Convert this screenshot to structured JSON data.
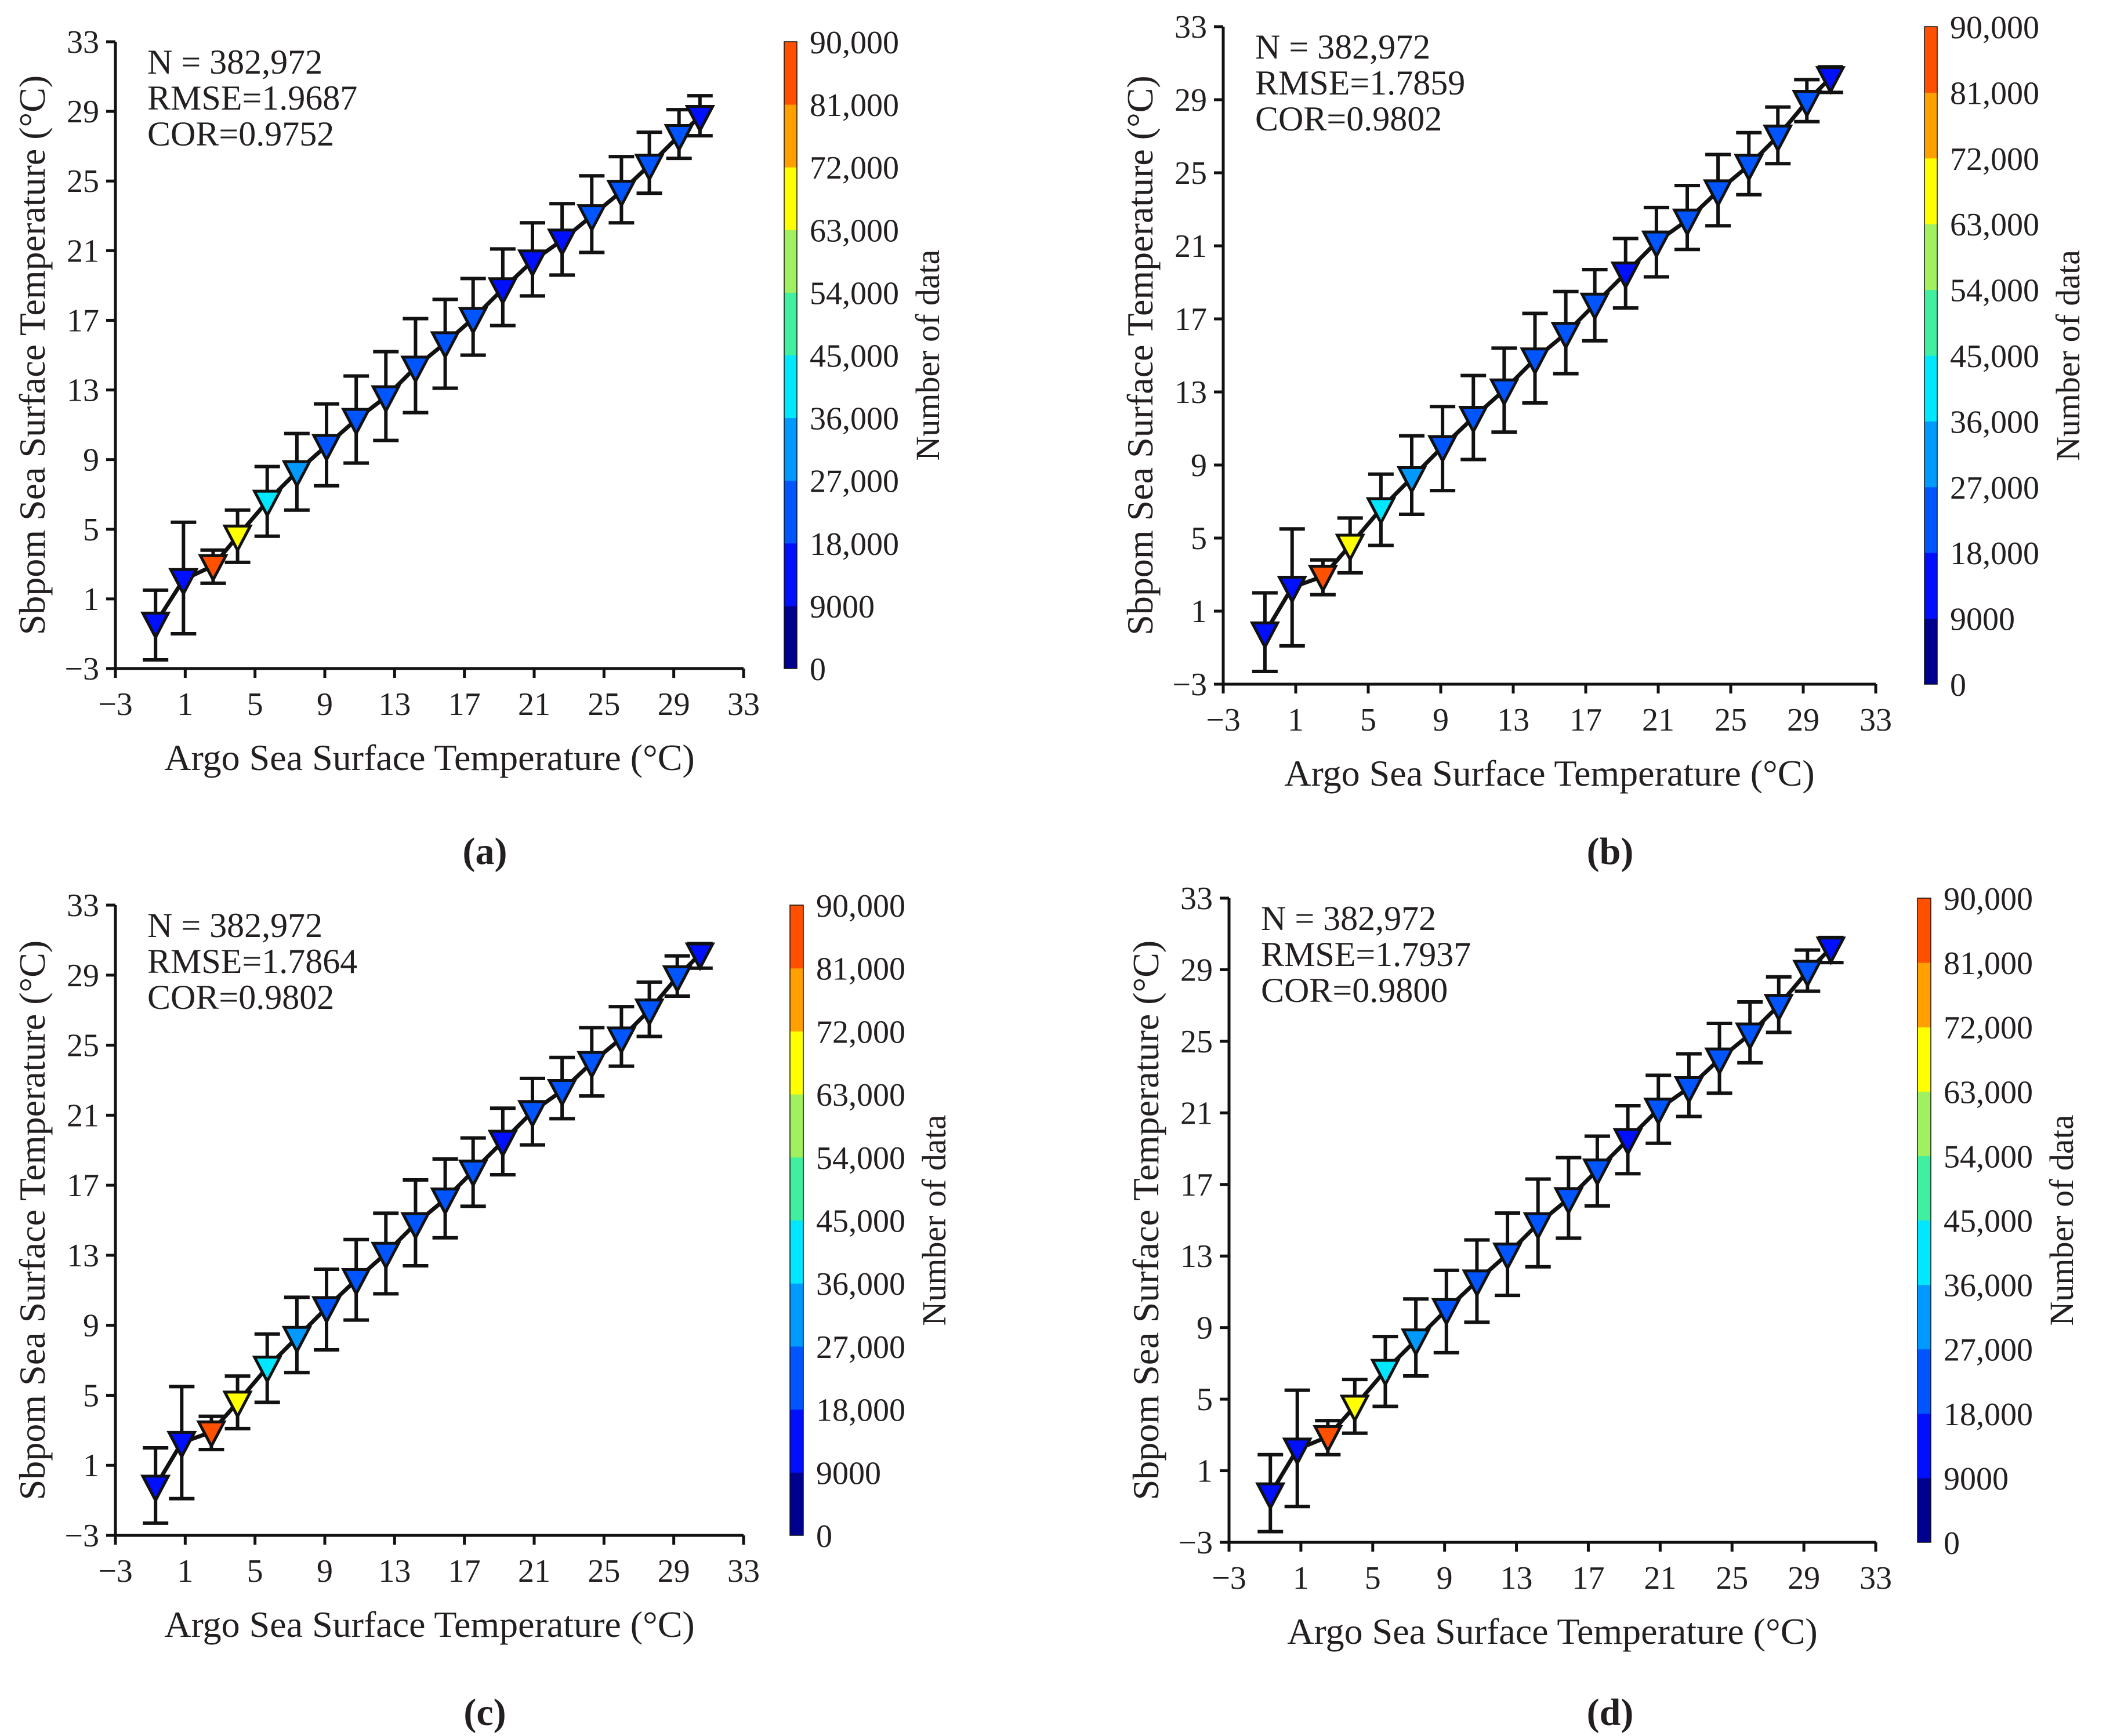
{
  "chart_data": [
    {
      "panel_label": "(a)",
      "panel_letter": "a",
      "type": "scatter",
      "xlabel": "Argo Sea Surface Temperature (°C)",
      "ylabel": "Sbpom Sea Surface Temperature (°C)",
      "xlim": [
        -3,
        33
      ],
      "ylim": [
        -3,
        33
      ],
      "xticks": [
        -3,
        1,
        5,
        9,
        13,
        17,
        21,
        25,
        29,
        33
      ],
      "yticks": [
        -3,
        1,
        5,
        9,
        13,
        17,
        21,
        25,
        29,
        33
      ],
      "annotations": [
        "N = 382,972",
        "RMSE=1.9687",
        "COR=0.9752"
      ],
      "colorbar": {
        "label": "Number of data",
        "ticks": [
          "0",
          "9000",
          "18,000",
          "27,000",
          "36,000",
          "45,000",
          "54,000",
          "63,000",
          "72,000",
          "81,000",
          "90,000"
        ],
        "range": [
          0,
          90000
        ]
      },
      "points": [
        {
          "x": -0.7,
          "y": -0.4,
          "err_hi": 1.5,
          "err_lo": -2.5,
          "count": 12000
        },
        {
          "x": 0.9,
          "y": 2.1,
          "err_hi": 5.4,
          "err_lo": -1.0,
          "count": 12000
        },
        {
          "x": 2.6,
          "y": 2.9,
          "err_hi": 3.8,
          "err_lo": 1.9,
          "count": 85000
        },
        {
          "x": 4.0,
          "y": 4.6,
          "err_hi": 6.1,
          "err_lo": 3.1,
          "count": 66000
        },
        {
          "x": 5.7,
          "y": 6.6,
          "err_hi": 8.6,
          "err_lo": 4.6,
          "count": 40000
        },
        {
          "x": 7.4,
          "y": 8.3,
          "err_hi": 10.5,
          "err_lo": 6.1,
          "count": 31000
        },
        {
          "x": 9.1,
          "y": 9.8,
          "err_hi": 12.2,
          "err_lo": 7.5,
          "count": 22000
        },
        {
          "x": 10.8,
          "y": 11.3,
          "err_hi": 13.8,
          "err_lo": 8.8,
          "count": 22000
        },
        {
          "x": 12.5,
          "y": 12.6,
          "err_hi": 15.2,
          "err_lo": 10.1,
          "count": 22000
        },
        {
          "x": 14.2,
          "y": 14.3,
          "err_hi": 17.1,
          "err_lo": 11.7,
          "count": 22000
        },
        {
          "x": 15.9,
          "y": 15.7,
          "err_hi": 18.2,
          "err_lo": 13.1,
          "count": 22000
        },
        {
          "x": 17.5,
          "y": 17.1,
          "err_hi": 19.4,
          "err_lo": 15.0,
          "count": 22000
        },
        {
          "x": 19.2,
          "y": 18.8,
          "err_hi": 21.1,
          "err_lo": 16.7,
          "count": 17000
        },
        {
          "x": 20.9,
          "y": 20.4,
          "err_hi": 22.6,
          "err_lo": 18.4,
          "count": 17000
        },
        {
          "x": 22.6,
          "y": 21.6,
          "err_hi": 23.7,
          "err_lo": 19.6,
          "count": 17000
        },
        {
          "x": 24.3,
          "y": 23.0,
          "err_hi": 25.3,
          "err_lo": 20.9,
          "count": 19000
        },
        {
          "x": 26.0,
          "y": 24.4,
          "err_hi": 26.4,
          "err_lo": 22.6,
          "count": 22000
        },
        {
          "x": 27.6,
          "y": 25.9,
          "err_hi": 27.8,
          "err_lo": 24.3,
          "count": 22000
        },
        {
          "x": 29.3,
          "y": 27.6,
          "err_hi": 29.1,
          "err_lo": 26.3,
          "count": 24000
        },
        {
          "x": 30.5,
          "y": 28.7,
          "err_hi": 29.9,
          "err_lo": 27.6,
          "count": 14000
        }
      ]
    },
    {
      "panel_label": "(b)",
      "panel_letter": "b",
      "type": "scatter",
      "xlabel": "Argo Sea Surface Temperature (°C)",
      "ylabel": "Sbpom Sea Surface Temperature (°C)",
      "xlim": [
        -3,
        33
      ],
      "ylim": [
        -3,
        33
      ],
      "xticks": [
        -3,
        1,
        5,
        9,
        13,
        17,
        21,
        25,
        29,
        33
      ],
      "yticks": [
        -3,
        1,
        5,
        9,
        13,
        17,
        21,
        25,
        29,
        33
      ],
      "annotations": [
        "N = 382,972",
        "RMSE=1.7859",
        "COR=0.9802"
      ],
      "colorbar": {
        "label": "Number of data",
        "ticks": [
          "0",
          "9000",
          "18,000",
          "27,000",
          "36,000",
          "45,000",
          "54,000",
          "63,000",
          "72,000",
          "81,000",
          "90,000"
        ],
        "range": [
          0,
          90000
        ]
      },
      "points": [
        {
          "x": -0.7,
          "y": -0.2,
          "err_hi": 2.0,
          "err_lo": -2.3,
          "count": 12000
        },
        {
          "x": 0.8,
          "y": 2.3,
          "err_hi": 5.5,
          "err_lo": -0.9,
          "count": 12000
        },
        {
          "x": 2.5,
          "y": 2.9,
          "err_hi": 3.8,
          "err_lo": 1.9,
          "count": 85000
        },
        {
          "x": 4.0,
          "y": 4.6,
          "err_hi": 6.1,
          "err_lo": 3.1,
          "count": 66000
        },
        {
          "x": 5.7,
          "y": 6.6,
          "err_hi": 8.5,
          "err_lo": 4.6,
          "count": 40000
        },
        {
          "x": 7.4,
          "y": 8.3,
          "err_hi": 10.6,
          "err_lo": 6.3,
          "count": 31000
        },
        {
          "x": 9.1,
          "y": 10.0,
          "err_hi": 12.2,
          "err_lo": 7.6,
          "count": 22000
        },
        {
          "x": 10.8,
          "y": 11.6,
          "err_hi": 13.9,
          "err_lo": 9.3,
          "count": 22000
        },
        {
          "x": 12.5,
          "y": 13.1,
          "err_hi": 15.4,
          "err_lo": 10.8,
          "count": 22000
        },
        {
          "x": 14.2,
          "y": 14.8,
          "err_hi": 17.3,
          "err_lo": 12.4,
          "count": 22000
        },
        {
          "x": 15.9,
          "y": 16.2,
          "err_hi": 18.5,
          "err_lo": 14.0,
          "count": 22000
        },
        {
          "x": 17.5,
          "y": 17.8,
          "err_hi": 19.7,
          "err_lo": 15.8,
          "count": 22000
        },
        {
          "x": 19.2,
          "y": 19.5,
          "err_hi": 21.4,
          "err_lo": 17.6,
          "count": 17000
        },
        {
          "x": 20.9,
          "y": 21.2,
          "err_hi": 23.1,
          "err_lo": 19.3,
          "count": 19000
        },
        {
          "x": 22.6,
          "y": 22.4,
          "err_hi": 24.3,
          "err_lo": 20.8,
          "count": 19000
        },
        {
          "x": 24.3,
          "y": 24.0,
          "err_hi": 26.0,
          "err_lo": 22.1,
          "count": 19000
        },
        {
          "x": 26.0,
          "y": 25.4,
          "err_hi": 27.2,
          "err_lo": 23.8,
          "count": 22000
        },
        {
          "x": 27.6,
          "y": 27.0,
          "err_hi": 28.6,
          "err_lo": 25.5,
          "count": 22000
        },
        {
          "x": 29.2,
          "y": 28.9,
          "err_hi": 30.1,
          "err_lo": 27.8,
          "count": 24000
        },
        {
          "x": 30.5,
          "y": 30.2,
          "err_hi": 30.8,
          "err_lo": 29.4,
          "count": 14000
        }
      ]
    },
    {
      "panel_label": "(c)",
      "panel_letter": "c",
      "type": "scatter",
      "xlabel": "Argo Sea Surface Temperature (°C)",
      "ylabel": "Sbpom Sea Surface Temperature (°C)",
      "xlim": [
        -3,
        33
      ],
      "ylim": [
        -3,
        33
      ],
      "xticks": [
        -3,
        1,
        5,
        9,
        13,
        17,
        21,
        25,
        29,
        33
      ],
      "yticks": [
        -3,
        1,
        5,
        9,
        13,
        17,
        21,
        25,
        29,
        33
      ],
      "annotations": [
        "N = 382,972",
        "RMSE=1.7864",
        "COR=0.9802"
      ],
      "colorbar": {
        "label": "Number of data",
        "ticks": [
          "0",
          "9000",
          "18,000",
          "27,000",
          "36,000",
          "45,000",
          "54,000",
          "63,000",
          "72,000",
          "81,000",
          "90,000"
        ],
        "range": [
          0,
          90000
        ]
      },
      "points": [
        {
          "x": -0.7,
          "y": -0.2,
          "err_hi": 2.0,
          "err_lo": -2.3,
          "count": 12000
        },
        {
          "x": 0.8,
          "y": 2.3,
          "err_hi": 5.5,
          "err_lo": -0.9,
          "count": 12000
        },
        {
          "x": 2.5,
          "y": 2.9,
          "err_hi": 3.8,
          "err_lo": 1.9,
          "count": 85000
        },
        {
          "x": 4.0,
          "y": 4.6,
          "err_hi": 6.1,
          "err_lo": 3.1,
          "count": 66000
        },
        {
          "x": 5.7,
          "y": 6.6,
          "err_hi": 8.5,
          "err_lo": 4.6,
          "count": 40000
        },
        {
          "x": 7.4,
          "y": 8.3,
          "err_hi": 10.6,
          "err_lo": 6.3,
          "count": 31000
        },
        {
          "x": 9.1,
          "y": 10.0,
          "err_hi": 12.2,
          "err_lo": 7.6,
          "count": 22000
        },
        {
          "x": 10.8,
          "y": 11.6,
          "err_hi": 13.9,
          "err_lo": 9.3,
          "count": 22000
        },
        {
          "x": 12.5,
          "y": 13.1,
          "err_hi": 15.4,
          "err_lo": 10.8,
          "count": 22000
        },
        {
          "x": 14.2,
          "y": 14.8,
          "err_hi": 17.3,
          "err_lo": 12.4,
          "count": 22000
        },
        {
          "x": 15.9,
          "y": 16.2,
          "err_hi": 18.5,
          "err_lo": 14.0,
          "count": 22000
        },
        {
          "x": 17.5,
          "y": 17.8,
          "err_hi": 19.7,
          "err_lo": 15.8,
          "count": 22000
        },
        {
          "x": 19.2,
          "y": 19.5,
          "err_hi": 21.4,
          "err_lo": 17.6,
          "count": 17000
        },
        {
          "x": 20.9,
          "y": 21.2,
          "err_hi": 23.1,
          "err_lo": 19.3,
          "count": 19000
        },
        {
          "x": 22.6,
          "y": 22.4,
          "err_hi": 24.3,
          "err_lo": 20.8,
          "count": 19000
        },
        {
          "x": 24.3,
          "y": 24.0,
          "err_hi": 26.0,
          "err_lo": 22.1,
          "count": 19000
        },
        {
          "x": 26.0,
          "y": 25.4,
          "err_hi": 27.2,
          "err_lo": 23.8,
          "count": 22000
        },
        {
          "x": 27.6,
          "y": 27.0,
          "err_hi": 28.6,
          "err_lo": 25.5,
          "count": 22000
        },
        {
          "x": 29.2,
          "y": 28.9,
          "err_hi": 30.1,
          "err_lo": 27.8,
          "count": 24000
        },
        {
          "x": 30.5,
          "y": 30.2,
          "err_hi": 30.8,
          "err_lo": 29.4,
          "count": 14000
        }
      ]
    },
    {
      "panel_label": "(d)",
      "panel_letter": "d",
      "type": "scatter",
      "xlabel": "Argo Sea Surface Temperature (°C)",
      "ylabel": "Sbpom Sea Surface Temperature (°C)",
      "xlim": [
        -3,
        33
      ],
      "ylim": [
        -3,
        33
      ],
      "xticks": [
        -3,
        1,
        5,
        9,
        13,
        17,
        21,
        25,
        29,
        33
      ],
      "yticks": [
        -3,
        1,
        5,
        9,
        13,
        17,
        21,
        25,
        29,
        33
      ],
      "annotations": [
        "N = 382,972",
        "RMSE=1.7937",
        "COR=0.9800"
      ],
      "colorbar": {
        "label": "Number of data",
        "ticks": [
          "0",
          "9000",
          "18,000",
          "27,000",
          "36,000",
          "45,000",
          "54,000",
          "63,000",
          "72,000",
          "81,000",
          "90,000"
        ],
        "range": [
          0,
          90000
        ]
      },
      "points": [
        {
          "x": -0.7,
          "y": -0.3,
          "err_hi": 1.9,
          "err_lo": -2.4,
          "count": 12000
        },
        {
          "x": 0.8,
          "y": 2.2,
          "err_hi": 5.5,
          "err_lo": -1.0,
          "count": 12000
        },
        {
          "x": 2.5,
          "y": 2.9,
          "err_hi": 3.8,
          "err_lo": 1.9,
          "count": 85000
        },
        {
          "x": 4.0,
          "y": 4.6,
          "err_hi": 6.1,
          "err_lo": 3.1,
          "count": 66000
        },
        {
          "x": 5.7,
          "y": 6.6,
          "err_hi": 8.5,
          "err_lo": 4.6,
          "count": 40000
        },
        {
          "x": 7.4,
          "y": 8.3,
          "err_hi": 10.6,
          "err_lo": 6.3,
          "count": 31000
        },
        {
          "x": 9.1,
          "y": 10.0,
          "err_hi": 12.2,
          "err_lo": 7.6,
          "count": 22000
        },
        {
          "x": 10.8,
          "y": 11.6,
          "err_hi": 13.9,
          "err_lo": 9.3,
          "count": 22000
        },
        {
          "x": 12.5,
          "y": 13.1,
          "err_hi": 15.4,
          "err_lo": 10.8,
          "count": 22000
        },
        {
          "x": 14.2,
          "y": 14.8,
          "err_hi": 17.3,
          "err_lo": 12.4,
          "count": 22000
        },
        {
          "x": 15.9,
          "y": 16.2,
          "err_hi": 18.5,
          "err_lo": 14.0,
          "count": 22000
        },
        {
          "x": 17.5,
          "y": 17.8,
          "err_hi": 19.7,
          "err_lo": 15.8,
          "count": 22000
        },
        {
          "x": 19.2,
          "y": 19.5,
          "err_hi": 21.4,
          "err_lo": 17.6,
          "count": 17000
        },
        {
          "x": 20.9,
          "y": 21.2,
          "err_hi": 23.1,
          "err_lo": 19.3,
          "count": 19000
        },
        {
          "x": 22.6,
          "y": 22.4,
          "err_hi": 24.3,
          "err_lo": 20.8,
          "count": 19000
        },
        {
          "x": 24.3,
          "y": 24.0,
          "err_hi": 26.0,
          "err_lo": 22.1,
          "count": 19000
        },
        {
          "x": 26.0,
          "y": 25.4,
          "err_hi": 27.2,
          "err_lo": 23.8,
          "count": 22000
        },
        {
          "x": 27.6,
          "y": 27.0,
          "err_hi": 28.6,
          "err_lo": 25.5,
          "count": 22000
        },
        {
          "x": 29.2,
          "y": 28.9,
          "err_hi": 30.1,
          "err_lo": 27.8,
          "count": 24000
        },
        {
          "x": 30.5,
          "y": 30.2,
          "err_hi": 30.8,
          "err_lo": 29.4,
          "count": 14000
        }
      ]
    }
  ],
  "colormap": [
    "#00008f",
    "#0010ff",
    "#0055ff",
    "#009aff",
    "#00e8ff",
    "#40f0a0",
    "#a0f060",
    "#ffff00",
    "#ffa000",
    "#ff5000"
  ]
}
